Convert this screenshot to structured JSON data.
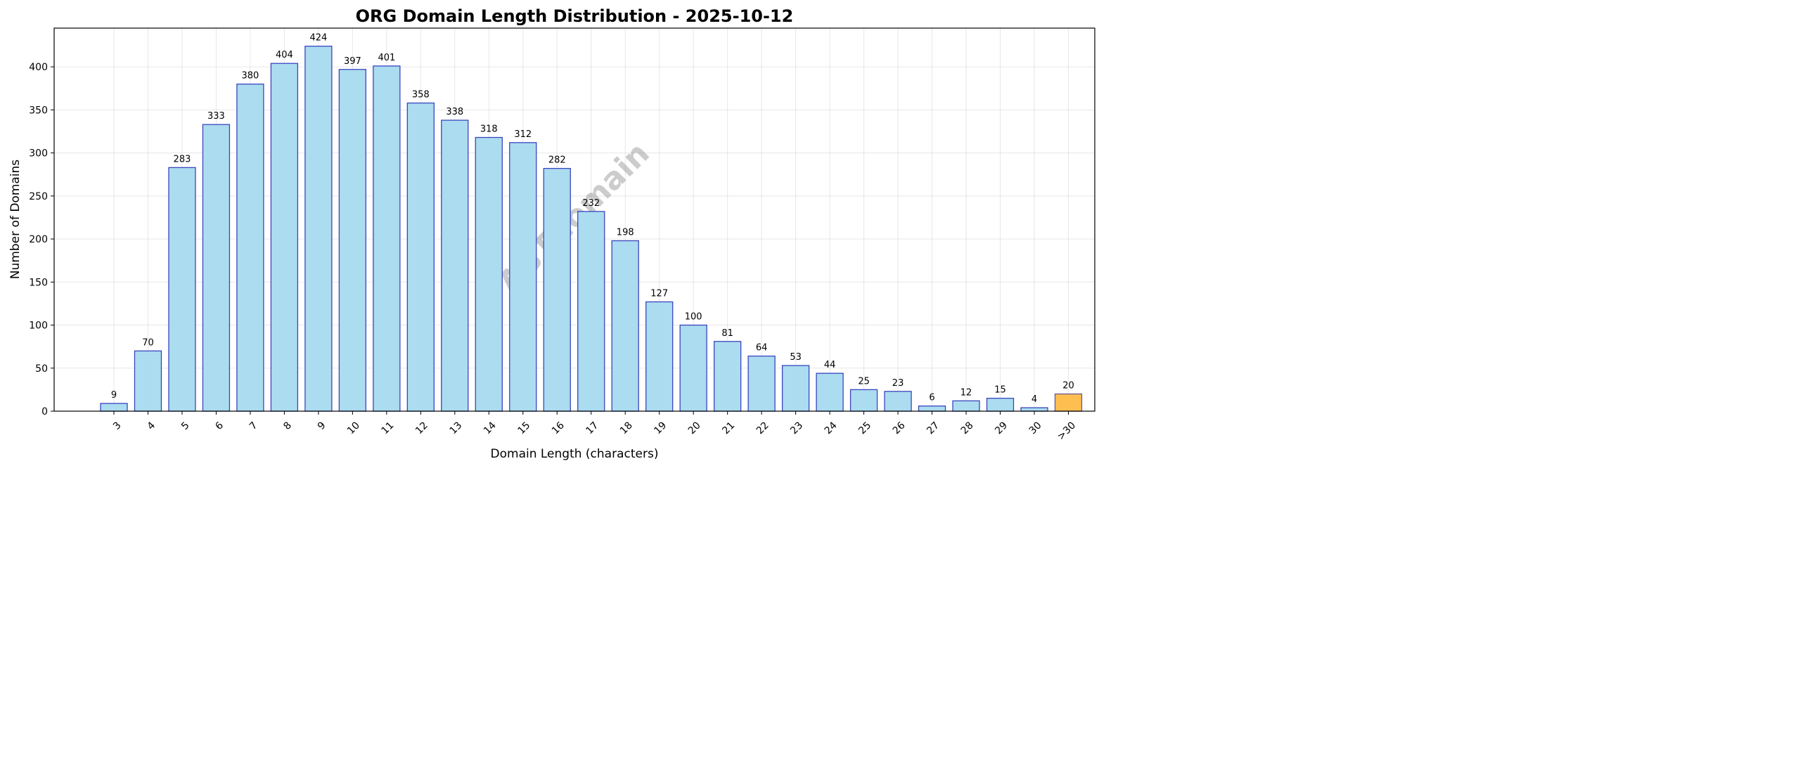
{
  "chart_data": {
    "type": "bar",
    "title": "ORG Domain Length Distribution - 2025-10-12",
    "xlabel": "Domain Length (characters)",
    "ylabel": "Number of Domains",
    "categories": [
      "3",
      "4",
      "5",
      "6",
      "7",
      "8",
      "9",
      "10",
      "11",
      "12",
      "13",
      "14",
      "15",
      "16",
      "17",
      "18",
      "19",
      "20",
      "21",
      "22",
      "23",
      "24",
      "25",
      "26",
      "27",
      "28",
      "29",
      "30",
      ">30"
    ],
    "values": [
      9,
      70,
      283,
      333,
      380,
      404,
      424,
      397,
      401,
      358,
      338,
      318,
      312,
      282,
      232,
      198,
      127,
      100,
      81,
      64,
      53,
      44,
      25,
      23,
      6,
      12,
      15,
      4,
      20
    ],
    "ylim": [
      0,
      445
    ],
    "yticks": [
      0,
      50,
      100,
      150,
      200,
      250,
      300,
      350,
      400
    ],
    "grid": true,
    "watermark": "ABTdomain",
    "colors": {
      "bar": "#abdcef",
      "edge": "#3a45c0",
      "highlight": "#ffbf50",
      "highlight_edge": "#6a5a8a"
    }
  }
}
